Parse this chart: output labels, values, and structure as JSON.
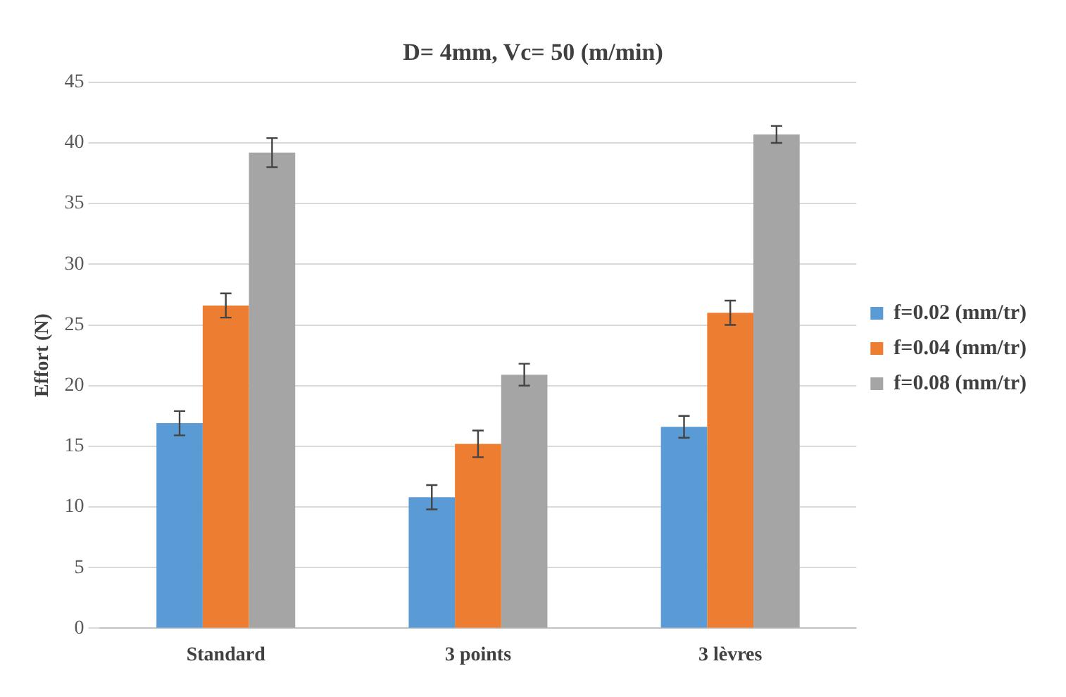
{
  "chart_data": {
    "type": "bar",
    "title": "D= 4mm, Vc= 50 (m/min)",
    "ylabel": "Effort (N)",
    "categories": [
      "Standard",
      "3 points",
      "3 lèvres"
    ],
    "series": [
      {
        "name": "f=0.02 (mm/tr)",
        "color": "#5b9bd5",
        "values": [
          16.9,
          10.8,
          16.6
        ],
        "errors": [
          1.0,
          1.0,
          0.9
        ]
      },
      {
        "name": "f=0.04 (mm/tr)",
        "color": "#ed7d31",
        "values": [
          26.6,
          15.2,
          26.0
        ],
        "errors": [
          1.0,
          1.1,
          1.0
        ]
      },
      {
        "name": "f=0.08 (mm/tr)",
        "color": "#a5a5a5",
        "values": [
          39.2,
          20.9,
          40.7
        ],
        "errors": [
          1.2,
          0.9,
          0.7
        ]
      }
    ],
    "ylim": [
      0,
      45
    ],
    "yticks": [
      0,
      5,
      10,
      15,
      20,
      25,
      30,
      35,
      40,
      45
    ],
    "grid": "y",
    "legend": "right"
  }
}
